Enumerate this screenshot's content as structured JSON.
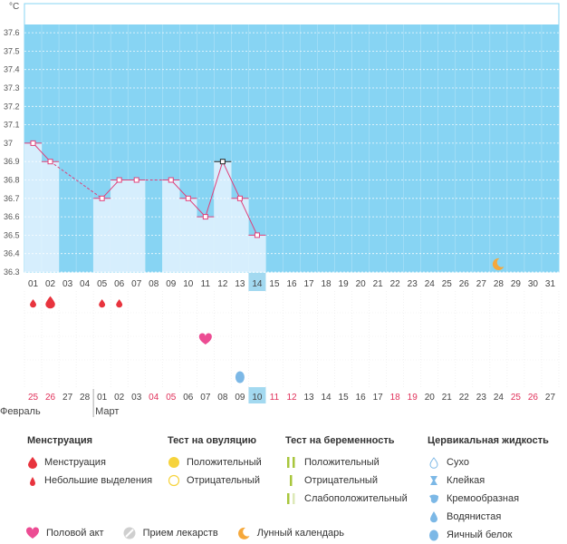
{
  "chart_data": {
    "type": "line",
    "unit_label": "°C",
    "y_ticks": [
      "36.3",
      "36.4",
      "36.5",
      "36.6",
      "36.7",
      "36.8",
      "36.9",
      "37",
      "37.1",
      "37.2",
      "37.3",
      "37.4",
      "37.5",
      "37.6"
    ],
    "ylim": [
      36.3,
      37.6
    ],
    "grid": true,
    "x_top": [
      "01",
      "02",
      "03",
      "04",
      "05",
      "06",
      "07",
      "08",
      "09",
      "10",
      "11",
      "12",
      "13",
      "14",
      "15",
      "16",
      "17",
      "18",
      "19",
      "20",
      "21",
      "22",
      "23",
      "24",
      "25",
      "26",
      "27",
      "28",
      "29",
      "30",
      "31"
    ],
    "highlight_index": 13,
    "temperatures": [
      37.0,
      36.9,
      null,
      null,
      36.7,
      36.8,
      36.8,
      null,
      36.8,
      36.7,
      36.6,
      36.9,
      36.7,
      36.5,
      null,
      null,
      null,
      null,
      null,
      null,
      null,
      null,
      null,
      null,
      null,
      null,
      null,
      null,
      null,
      null,
      null
    ],
    "marked_index": 11,
    "bar_days": [
      0,
      1,
      4,
      5,
      6,
      8,
      9,
      10,
      11,
      12,
      13
    ],
    "x_bottom": [
      "25",
      "26",
      "27",
      "28",
      "01",
      "02",
      "03",
      "04",
      "05",
      "06",
      "07",
      "08",
      "09",
      "10",
      "11",
      "12",
      "13",
      "14",
      "15",
      "16",
      "17",
      "18",
      "19",
      "20",
      "21",
      "22",
      "23",
      "24",
      "25",
      "26",
      "27"
    ],
    "x_bottom_red": [
      0,
      1,
      7,
      8,
      14,
      15,
      21,
      22,
      28,
      29
    ],
    "months": [
      {
        "label": "Февраль",
        "start": 0
      },
      {
        "label": "Март",
        "start": 4
      }
    ],
    "events": {
      "menstruation": [
        1
      ],
      "light_spotting": [
        0,
        4,
        5
      ],
      "intercourse": [
        10
      ],
      "cervical_egg_white": [
        12
      ],
      "moon": [
        27
      ]
    }
  },
  "legend": {
    "menstruation": {
      "title": "Менструация",
      "items": [
        "Менструация",
        "Небольшие выделения"
      ]
    },
    "ovulation_test": {
      "title": "Тест на овуляцию",
      "items": [
        "Положительный",
        "Отрицательный"
      ]
    },
    "pregnancy_test": {
      "title": "Тест на беременность",
      "items": [
        "Положительный",
        "Отрицательный",
        "Слабоположительный"
      ]
    },
    "cervical": {
      "title": "Цервикальная жидкость",
      "items": [
        "Сухо",
        "Клейкая",
        "Кремообразная",
        "Водянистая",
        "Яичный белок"
      ]
    },
    "bottom": [
      "Половой акт",
      "Прием лекарств",
      "Лунный календарь"
    ]
  },
  "colors": {
    "sky": "#87d4f3",
    "bar_fill": "#d6eefd",
    "line": "#e0407a",
    "highlight": "#a3d9f0",
    "red_text": "#e0315a",
    "drop": "#e8343e",
    "heart": "#ec4c93",
    "moon": "#f5a83b",
    "blue_drop": "#7cb8e6",
    "yellow": "#f6d33c"
  }
}
